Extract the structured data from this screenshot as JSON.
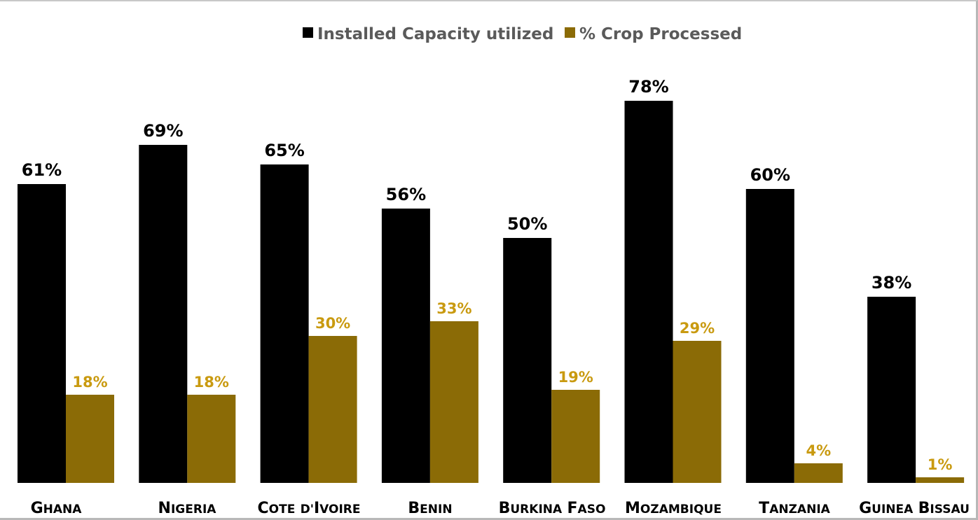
{
  "chart_data": {
    "type": "bar",
    "categories": [
      "Ghana",
      "Nigeria",
      "Cote d'Ivoire",
      "Benin",
      "Burkina Faso",
      "Mozambique",
      "Tanzania",
      "Guinea Bissau"
    ],
    "series": [
      {
        "name": "Installed Capacity utilized",
        "values": [
          61,
          69,
          65,
          56,
          50,
          78,
          60,
          38
        ],
        "labels": [
          "61%",
          "69%",
          "65%",
          "56%",
          "50%",
          "78%",
          "60%",
          "38%"
        ],
        "color": "#000000"
      },
      {
        "name": "% Crop Processed",
        "values": [
          18,
          18,
          30,
          33,
          19,
          29,
          4,
          1
        ],
        "labels": [
          "18%",
          "18%",
          "30%",
          "33%",
          "19%",
          "29%",
          "4%",
          "1%"
        ],
        "color": "#8b6b06"
      }
    ],
    "label_color_b": "#c99a10",
    "ylim": [
      0,
      80
    ],
    "grid": false,
    "legend": "top-center",
    "category_style": "small-caps"
  }
}
